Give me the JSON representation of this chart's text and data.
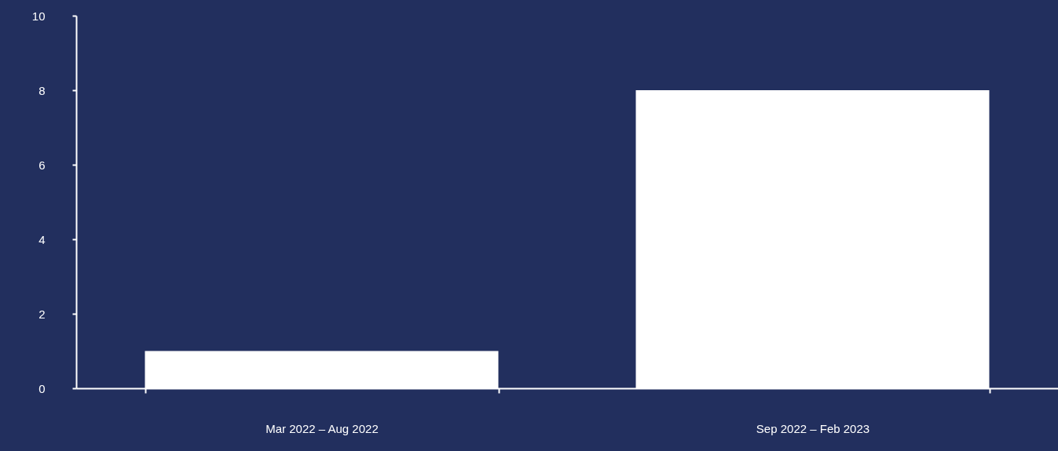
{
  "chart_data": {
    "type": "bar",
    "categories": [
      "Mar 2022 – Aug 2022",
      "Sep 2022 – Feb 2023"
    ],
    "values": [
      1,
      8
    ],
    "color": "#ffffff",
    "ylim": [
      0,
      10
    ],
    "yticks": [
      0,
      2,
      4,
      6,
      8,
      10
    ],
    "grid": false
  }
}
